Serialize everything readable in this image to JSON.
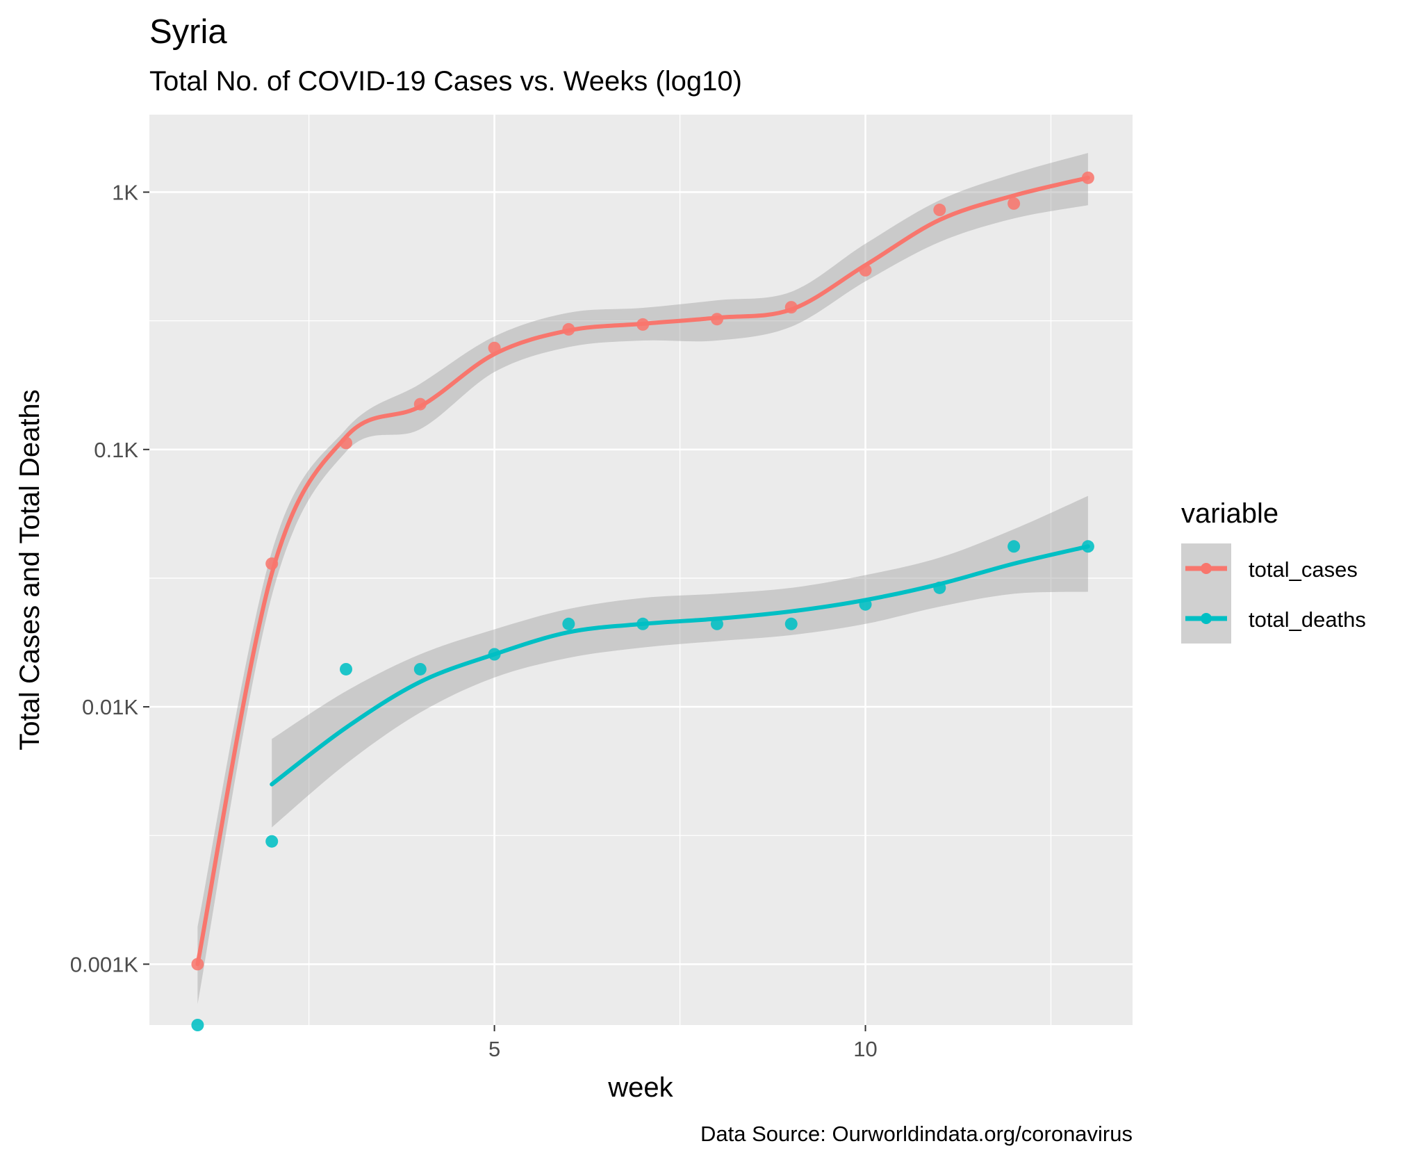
{
  "chart_data": {
    "type": "line",
    "title": "Syria",
    "subtitle": "Total No. of COVID-19 Cases vs. Weeks (log10)",
    "xlabel": "week",
    "ylabel": "Total Cases and Total Deaths",
    "caption": "Data Source: Ourworldindata.org/coronavirus",
    "x_ticks": [
      {
        "value": 5,
        "label": "5"
      },
      {
        "value": 10,
        "label": "10"
      }
    ],
    "y_scale": "log10",
    "y_ticks": [
      {
        "value": 1,
        "label": "0.001K"
      },
      {
        "value": 10,
        "label": "0.01K"
      },
      {
        "value": 100,
        "label": "0.1K"
      },
      {
        "value": 1000,
        "label": "1K"
      }
    ],
    "xlim": [
      0.35,
      13.6
    ],
    "ylim": [
      0.58,
      2000
    ],
    "grid": true,
    "legend": {
      "title": "variable",
      "position": "right"
    },
    "series": [
      {
        "name": "total_cases",
        "color": "#F8766D",
        "x": [
          1,
          2,
          3,
          4,
          5,
          6,
          7,
          8,
          9,
          10,
          11,
          12,
          13
        ],
        "values": [
          1,
          36,
          106,
          150,
          248,
          293,
          306,
          321,
          357,
          497,
          853,
          903,
          1137
        ],
        "smooth": [
          1,
          33,
          112,
          147,
          235,
          290,
          308,
          325,
          350,
          520,
          780,
          970,
          1137
        ],
        "band_lower": [
          0.7,
          27,
          98,
          120,
          200,
          250,
          265,
          265,
          300,
          450,
          640,
          790,
          890
        ],
        "band_upper": [
          1.4,
          40,
          120,
          180,
          275,
          340,
          355,
          380,
          410,
          630,
          930,
          1180,
          1420
        ]
      },
      {
        "name": "total_deaths",
        "color": "#00BFC4",
        "x": [
          1,
          2,
          3,
          4,
          5,
          6,
          7,
          8,
          9,
          10,
          11,
          12,
          13
        ],
        "values": [
          0.58,
          3,
          14,
          14,
          16,
          21,
          21,
          21,
          21,
          25,
          29,
          42,
          42
        ],
        "smooth_x": [
          2,
          3,
          4,
          5,
          6,
          7,
          8,
          9,
          10,
          11,
          12,
          13
        ],
        "smooth": [
          5,
          8.3,
          12.5,
          16,
          19.5,
          21,
          22,
          23.5,
          26,
          30,
          36,
          42
        ],
        "band_lower": [
          3.4,
          6,
          9.5,
          13,
          15.5,
          17,
          18,
          19,
          21,
          24.5,
          27.5,
          28
        ],
        "band_upper": [
          7.5,
          11.5,
          16,
          20,
          24,
          26.5,
          27.5,
          29,
          32.5,
          38,
          49,
          66
        ]
      }
    ]
  }
}
